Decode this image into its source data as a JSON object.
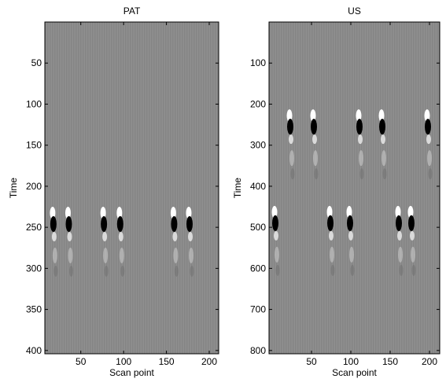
{
  "chart_data": [
    {
      "type": "image",
      "title": "PAT",
      "xlabel": "Scan point",
      "ylabel": "Time",
      "xlim": [
        8,
        211
      ],
      "ylim": [
        0,
        404
      ],
      "yreversed": true,
      "xticks": [
        50,
        100,
        150,
        200
      ],
      "yticks": [
        50,
        100,
        150,
        200,
        250,
        300,
        350,
        400
      ],
      "background": "#8a8a8a",
      "points": {
        "x": [
          18,
          36,
          77,
          96,
          159,
          177
        ],
        "y": [
          246,
          246,
          246,
          246,
          246,
          246
        ]
      }
    },
    {
      "type": "image",
      "title": "US",
      "xlabel": "Scan point",
      "ylabel": "Time",
      "xlim": [
        -4,
        213
      ],
      "ylim": [
        0,
        808
      ],
      "yreversed": true,
      "xticks": [
        50,
        100,
        150,
        200
      ],
      "yticks": [
        100,
        200,
        300,
        400,
        500,
        600,
        700,
        800
      ],
      "background": "#8a8a8a",
      "points": {
        "x": [
          23,
          53,
          111,
          140,
          198,
          4,
          74,
          99,
          161,
          177
        ],
        "y": [
          255,
          255,
          255,
          255,
          255,
          490,
          490,
          490,
          490,
          490
        ]
      }
    }
  ]
}
